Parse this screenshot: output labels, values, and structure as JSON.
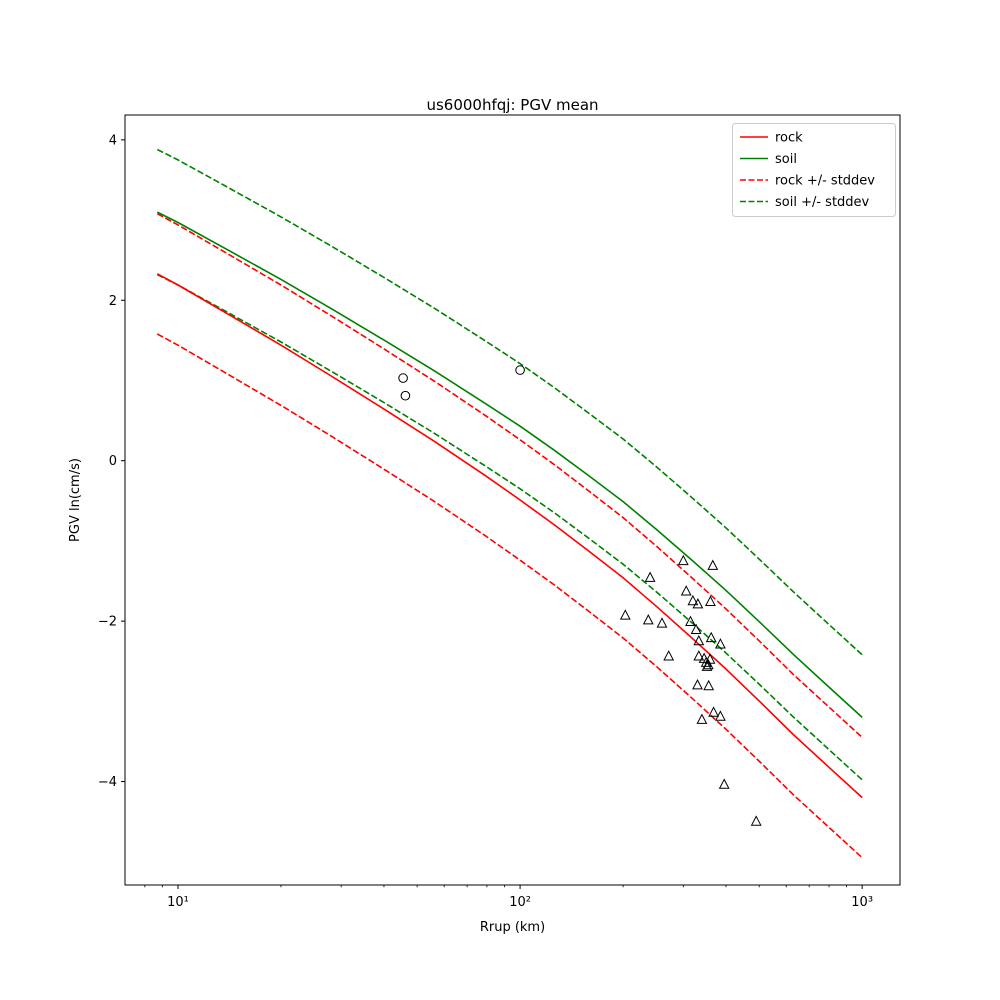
{
  "figure": {
    "title": "us6000hfqj: PGV mean",
    "xlabel": "Rrup (km)",
    "ylabel": "PGV ln(cm/s)"
  },
  "legend": {
    "entries": [
      {
        "label": "rock",
        "color": "#ff0000",
        "dash": false
      },
      {
        "label": "soil",
        "color": "#008000",
        "dash": false
      },
      {
        "label": "rock +/- stddev",
        "color": "#ff0000",
        "dash": true
      },
      {
        "label": "soil +/- stddev",
        "color": "#008000",
        "dash": true
      }
    ]
  },
  "chart_data": {
    "type": "line",
    "title": "us6000hfqj: PGV mean",
    "xlabel": "Rrup (km)",
    "ylabel": "PGV ln(cm/s)",
    "x_scale": "log",
    "x_range": [
      7,
      1290
    ],
    "y_range": [
      -5.29,
      4.31
    ],
    "x_ticks": {
      "values": [
        10,
        100,
        1000
      ],
      "labels": [
        "10¹",
        "10²",
        "10³"
      ]
    },
    "y_ticks": {
      "values": [
        4,
        2,
        0,
        -2,
        -4
      ],
      "labels": [
        "4",
        "2",
        "0",
        "−2",
        "−4"
      ]
    },
    "grid": false,
    "legend_position": "upper right",
    "x": [
      8.7,
      10,
      14.1,
      20,
      28.2,
      39.8,
      56.2,
      79.4,
      100,
      126,
      158,
      200,
      251,
      316,
      398,
      501,
      631,
      794,
      1000
    ],
    "series": [
      {
        "name": "rock",
        "color": "#ff0000",
        "style": "solid",
        "values": [
          2.33,
          2.19,
          1.82,
          1.44,
          1.05,
          0.65,
          0.24,
          -0.19,
          -0.49,
          -0.8,
          -1.12,
          -1.46,
          -1.82,
          -2.2,
          -2.59,
          -3.0,
          -3.42,
          -3.81,
          -4.2
        ]
      },
      {
        "name": "soil",
        "color": "#008000",
        "style": "solid",
        "values": [
          3.1,
          2.97,
          2.62,
          2.26,
          1.89,
          1.51,
          1.12,
          0.71,
          0.43,
          0.13,
          -0.18,
          -0.51,
          -0.86,
          -1.23,
          -1.61,
          -2.01,
          -2.42,
          -2.81,
          -3.2
        ]
      }
    ],
    "stddev": {
      "rock": 0.75,
      "soil": 0.78
    },
    "scatter": {
      "circles": [
        [
          45.5,
          1.03
        ],
        [
          46.2,
          0.81
        ],
        [
          100,
          1.13
        ]
      ],
      "triangles": [
        [
          300,
          -1.25
        ],
        [
          366,
          -1.31
        ],
        [
          240,
          -1.46
        ],
        [
          306,
          -1.63
        ],
        [
          320,
          -1.75
        ],
        [
          331,
          -1.79
        ],
        [
          360,
          -1.76
        ],
        [
          203,
          -1.93
        ],
        [
          237,
          -1.99
        ],
        [
          260,
          -2.03
        ],
        [
          315,
          -2.01
        ],
        [
          327,
          -2.11
        ],
        [
          333,
          -2.25
        ],
        [
          362,
          -2.21
        ],
        [
          385,
          -2.29
        ],
        [
          272,
          -2.44
        ],
        [
          333,
          -2.44
        ],
        [
          345,
          -2.47
        ],
        [
          350,
          -2.52
        ],
        [
          355,
          -2.55
        ],
        [
          359,
          -2.48
        ],
        [
          352,
          -2.57
        ],
        [
          330,
          -2.8
        ],
        [
          356,
          -2.81
        ],
        [
          340,
          -3.23
        ],
        [
          368,
          -3.14
        ],
        [
          385,
          -3.19
        ],
        [
          395,
          -4.04
        ],
        [
          490,
          -4.5
        ]
      ]
    }
  }
}
